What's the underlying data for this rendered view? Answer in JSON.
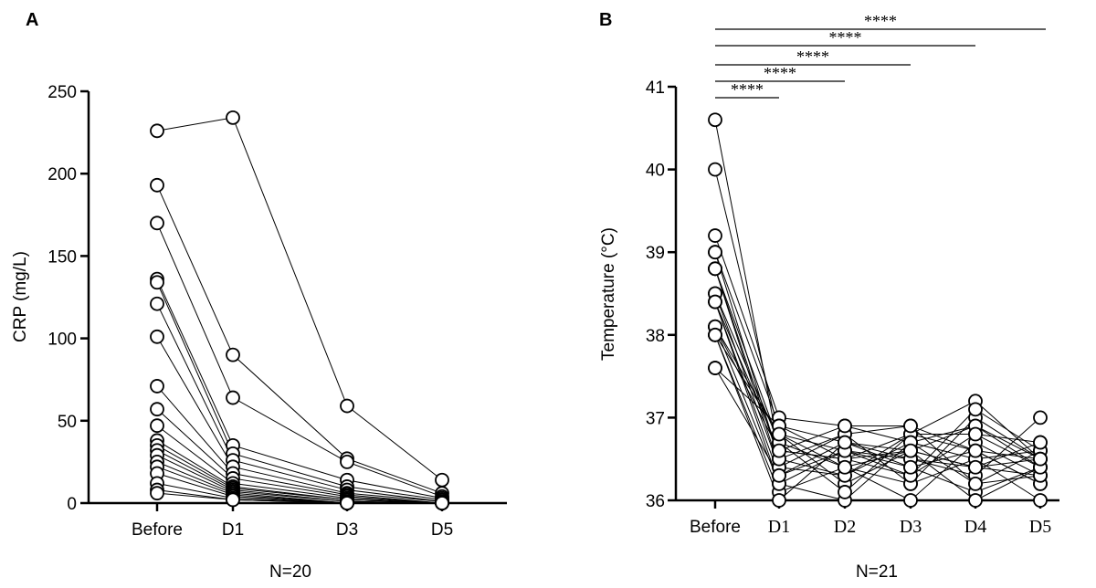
{
  "chart_data": [
    {
      "panel": "A",
      "type": "line",
      "categories": [
        "Before",
        "D1",
        "D3",
        "D5"
      ],
      "ylabel": "CRP (mg/L)",
      "xlabel": "N=20",
      "ylim": [
        0,
        250
      ],
      "yticks": [
        0,
        50,
        100,
        150,
        200,
        250
      ],
      "grid": false,
      "series": [
        {
          "values": [
            226,
            234,
            59,
            14
          ]
        },
        {
          "values": [
            193,
            90,
            27,
            6
          ]
        },
        {
          "values": [
            170,
            64,
            25,
            4
          ]
        },
        {
          "values": [
            136,
            35,
            14,
            3
          ]
        },
        {
          "values": [
            134,
            30,
            10,
            2
          ]
        },
        {
          "values": [
            121,
            26,
            8,
            1
          ]
        },
        {
          "values": [
            101,
            22,
            6,
            1
          ]
        },
        {
          "values": [
            71,
            18,
            5,
            0
          ]
        },
        {
          "values": [
            57,
            15,
            4,
            0
          ]
        },
        {
          "values": [
            47,
            12,
            3,
            0
          ]
        },
        {
          "values": [
            38,
            10,
            2,
            0
          ]
        },
        {
          "values": [
            35,
            9,
            2,
            0
          ]
        },
        {
          "values": [
            32,
            8,
            1,
            0
          ]
        },
        {
          "values": [
            29,
            7,
            1,
            0
          ]
        },
        {
          "values": [
            25,
            6,
            0,
            0
          ]
        },
        {
          "values": [
            22,
            5,
            0,
            0
          ]
        },
        {
          "values": [
            18,
            4,
            0,
            0
          ]
        },
        {
          "values": [
            12,
            3,
            0,
            0
          ]
        },
        {
          "values": [
            8,
            2,
            0,
            0
          ]
        },
        {
          "values": [
            6,
            2,
            0,
            0
          ]
        }
      ]
    },
    {
      "panel": "B",
      "type": "line",
      "categories": [
        "Before",
        "D1",
        "D2",
        "D3",
        "D4",
        "D5"
      ],
      "ylabel": "Temperature (°C)",
      "xlabel": "N=21",
      "ylim": [
        36,
        41
      ],
      "yticks": [
        36,
        37,
        38,
        39,
        40,
        41
      ],
      "grid": false,
      "significance": [
        {
          "from": "Before",
          "to": "D1",
          "label": "****"
        },
        {
          "from": "Before",
          "to": "D2",
          "label": "****"
        },
        {
          "from": "Before",
          "to": "D3",
          "label": "****"
        },
        {
          "from": "Before",
          "to": "D4",
          "label": "****"
        },
        {
          "from": "Before",
          "to": "D5",
          "label": "****"
        }
      ],
      "series": [
        {
          "values": [
            40.6,
            36.6,
            36.5,
            36.8,
            37.2,
            36.5
          ]
        },
        {
          "values": [
            40.0,
            36.8,
            36.6,
            36.5,
            36.4,
            36.3
          ]
        },
        {
          "values": [
            39.2,
            37.0,
            36.9,
            36.7,
            36.2,
            36.6
          ]
        },
        {
          "values": [
            39.0,
            36.9,
            36.7,
            36.6,
            36.9,
            36.4
          ]
        },
        {
          "values": [
            38.8,
            36.7,
            36.4,
            36.2,
            37.0,
            36.5
          ]
        },
        {
          "values": [
            38.8,
            36.5,
            36.8,
            36.9,
            36.6,
            36.2
          ]
        },
        {
          "values": [
            38.5,
            36.4,
            36.3,
            36.8,
            36.8,
            36.7
          ]
        },
        {
          "values": [
            38.4,
            36.3,
            36.6,
            36.4,
            36.1,
            36.4
          ]
        },
        {
          "values": [
            38.4,
            36.2,
            36.0,
            36.7,
            36.5,
            36.0
          ]
        },
        {
          "values": [
            38.1,
            36.6,
            36.5,
            36.3,
            37.1,
            36.6
          ]
        },
        {
          "values": [
            38.1,
            36.8,
            36.2,
            36.6,
            36.4,
            36.5
          ]
        },
        {
          "values": [
            38.0,
            36.1,
            36.4,
            36.0,
            36.7,
            36.3
          ]
        },
        {
          "values": [
            38.0,
            36.0,
            36.7,
            36.5,
            36.3,
            37.0
          ]
        },
        {
          "values": [
            37.6,
            36.9,
            36.5,
            36.6,
            36.0,
            36.4
          ]
        },
        {
          "values": [
            38.5,
            36.7,
            36.1,
            36.8,
            36.6,
            36.2
          ]
        },
        {
          "values": [
            38.8,
            36.4,
            36.8,
            36.2,
            36.5,
            36.6
          ]
        },
        {
          "values": [
            39.0,
            36.5,
            36.3,
            36.7,
            36.9,
            36.5
          ]
        },
        {
          "values": [
            38.4,
            36.6,
            36.9,
            36.9,
            36.2,
            36.3
          ]
        },
        {
          "values": [
            38.1,
            36.2,
            36.6,
            36.3,
            36.8,
            36.4
          ]
        },
        {
          "values": [
            38.0,
            36.8,
            36.4,
            36.6,
            36.4,
            36.7
          ]
        },
        {
          "values": [
            37.6,
            36.3,
            36.7,
            36.4,
            36.6,
            36.5
          ]
        }
      ]
    }
  ]
}
